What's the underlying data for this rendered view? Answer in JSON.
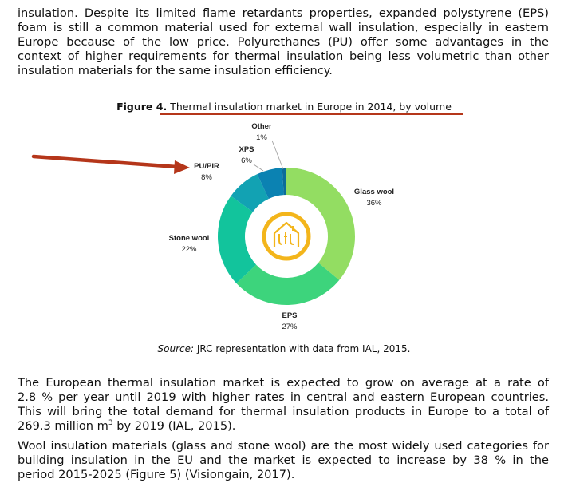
{
  "para1": {
    "lines": [
      "insulation. Despite its limited flame retardants properties, expanded polystyrene (EPS)",
      "foam is still a common material used for external wall insulation, especially in eastern",
      "Europe because of the low price. Polyurethanes (PU) offer some advantages in the",
      "context of higher requirements for thermal insulation being less volumetric than other",
      "insulation materials for the same insulation efficiency."
    ]
  },
  "figure": {
    "label": "Figure 4.",
    "title": "Thermal insulation market in Europe in 2014, by volume",
    "source_label": "Source:",
    "source_text": " JRC representation with data from IAL, 2015."
  },
  "chart_data": {
    "type": "pie",
    "donut": true,
    "title": "Thermal insulation market in Europe in 2014, by volume",
    "categories": [
      "Glass wool",
      "EPS",
      "Stone wool",
      "PU/PIR",
      "XPS",
      "Other"
    ],
    "values": [
      36,
      27,
      22,
      8,
      6,
      1
    ],
    "value_labels": [
      "36%",
      "27%",
      "22%",
      "8%",
      "6%",
      "1%"
    ],
    "colors": [
      "#93dd62",
      "#3dd47c",
      "#12c49c",
      "#12a2b3",
      "#0b82b2",
      "#0b6c99"
    ],
    "center_logo": "house-logo-icon",
    "center_logo_color": "#f3b51b",
    "annotation_color": "#b5361a"
  },
  "para2": {
    "lines": [
      "The European thermal insulation market is expected to grow on average at a rate of",
      "2.8 % per year until 2019 with higher rates in central and eastern European countries.",
      "This will bring the total demand for thermal insulation products in Europe to a total of"
    ],
    "last_before": "269.3 million m",
    "last_sup": "3",
    "last_after": " by 2019 (IAL, 2015)."
  },
  "para3": {
    "lines": [
      "Wool insulation materials (glass and stone wool) are the most widely used categories for",
      "building insulation in the EU and the market is expected to increase by 38 % in the",
      "period 2015-2025 (Figure 5) (Visiongain, 2017)."
    ]
  }
}
